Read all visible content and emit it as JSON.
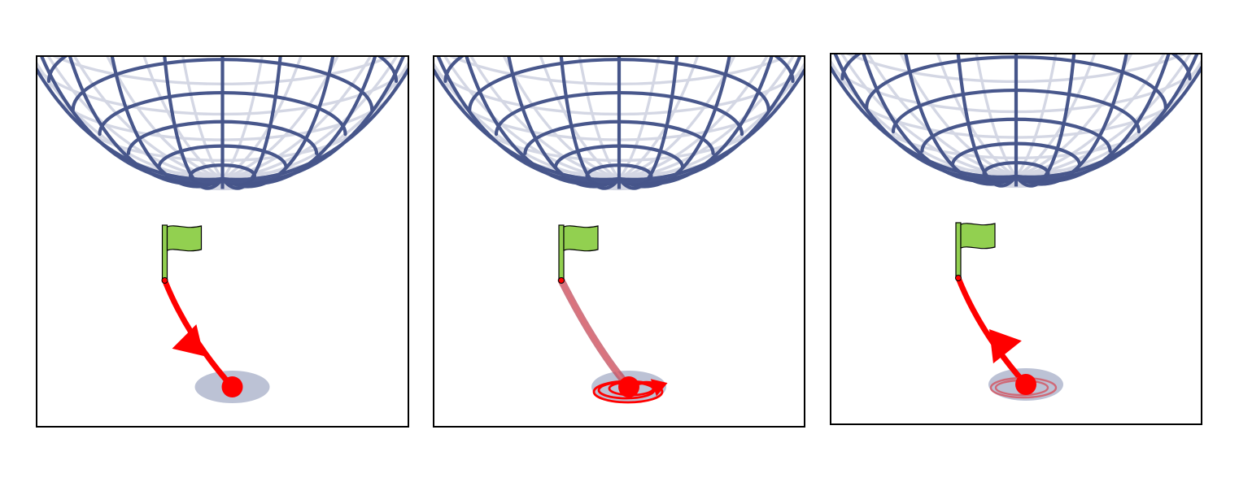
{
  "colors": {
    "background": "#ffffff",
    "grid": "#3f4f86",
    "path": "#ff0000",
    "flag": "#92d050",
    "frame": "#000000"
  },
  "panels": [
    {
      "path_style": "arrow-toward-pole",
      "orbit": "none",
      "marker_icon": "red-dot-icon",
      "flag_icon": "flag-icon"
    },
    {
      "path_style": "faded-trail",
      "orbit": "spiral",
      "marker_icon": "red-dot-icon",
      "flag_icon": "flag-icon"
    },
    {
      "path_style": "arrow-toward-flag",
      "orbit": "faded-loop",
      "marker_icon": "red-dot-icon",
      "flag_icon": "flag-icon"
    }
  ]
}
